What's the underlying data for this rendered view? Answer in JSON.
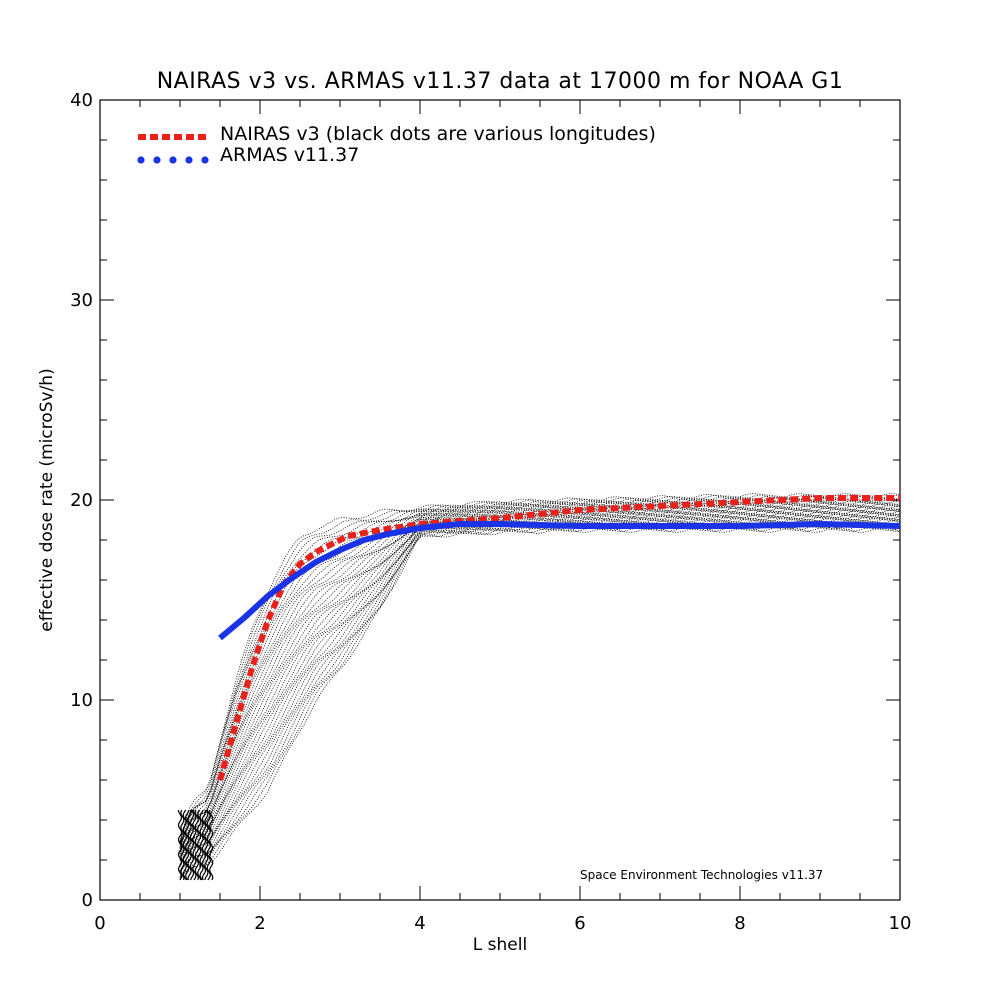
{
  "chart_data": {
    "type": "line",
    "title": "NAIRAS  v3 vs. ARMAS v11.37 data at 17000 m for NOAA G1",
    "xlabel": "L shell",
    "ylabel": "effective dose rate (microSv/h)",
    "xlim": [
      0,
      10
    ],
    "ylim": [
      0,
      40
    ],
    "x_ticks": [
      "0",
      "2",
      "4",
      "6",
      "8",
      "10"
    ],
    "y_ticks": [
      "0",
      "10",
      "20",
      "30",
      "40"
    ],
    "grid": false,
    "legend_position": "top-left",
    "credit": "Space Environment Technologies v11.37",
    "series": [
      {
        "name": "NAIRAS v3 (black dots are various longitudes)",
        "color": "#e8221b",
        "style": "dashed",
        "x": [
          1.5,
          1.7,
          1.9,
          2.1,
          2.3,
          2.5,
          2.7,
          2.9,
          3.1,
          3.5,
          4.0,
          5.0,
          6.0,
          7.0,
          8.0,
          9.0,
          10.0
        ],
        "y": [
          6.0,
          8.8,
          11.6,
          14.0,
          15.8,
          16.8,
          17.4,
          17.8,
          18.2,
          18.5,
          18.8,
          19.1,
          19.5,
          19.7,
          19.9,
          20.1,
          20.1
        ]
      },
      {
        "name": "ARMAS v11.37",
        "color": "#1a33e6",
        "style": "solid",
        "x": [
          1.5,
          1.8,
          2.1,
          2.4,
          2.7,
          3.0,
          3.3,
          3.6,
          4.0,
          4.5,
          5.0,
          6.0,
          7.0,
          8.0,
          9.0,
          10.0
        ],
        "y": [
          13.1,
          14.1,
          15.2,
          16.1,
          16.9,
          17.5,
          18.0,
          18.3,
          18.6,
          18.8,
          18.8,
          18.7,
          18.7,
          18.7,
          18.8,
          18.7
        ]
      }
    ],
    "longitude_scatter": {
      "color": "#000000",
      "x": [
        1.0,
        1.1,
        1.2,
        1.35,
        1.5,
        1.7,
        1.9,
        2.1,
        2.3,
        2.5,
        2.7,
        3.0,
        3.5,
        4.0,
        5.0,
        6.0,
        7.0,
        8.0,
        9.0,
        10.0
      ],
      "y_min": [
        1.0,
        1.4,
        1.6,
        1.8,
        2.5,
        3.5,
        4.5,
        5.5,
        7.0,
        8.5,
        10.0,
        11.5,
        14.5,
        18.2,
        18.4,
        18.5,
        18.5,
        18.5,
        18.5,
        18.5
      ],
      "y_max": [
        3.0,
        4.5,
        5.0,
        5.5,
        8.0,
        11.0,
        13.5,
        15.5,
        17.0,
        18.1,
        18.6,
        19.0,
        19.4,
        19.6,
        19.9,
        20.0,
        20.1,
        20.2,
        20.2,
        20.2
      ]
    }
  }
}
